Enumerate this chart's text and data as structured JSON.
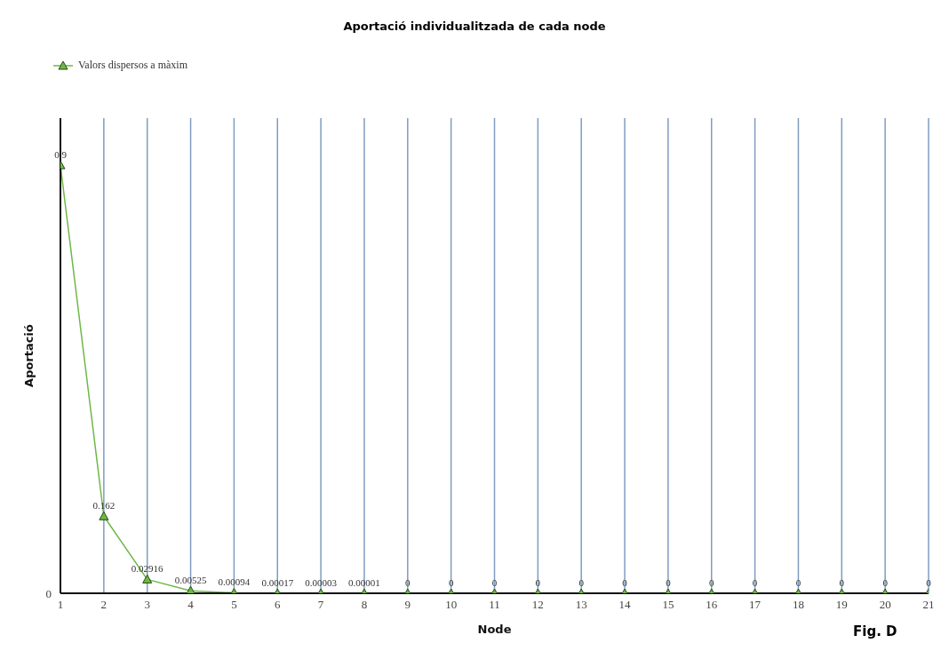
{
  "chart_data": {
    "type": "line",
    "title": "Aportació individualitzada de cada node",
    "xlabel": "Node",
    "ylabel": "Aportació",
    "x": [
      1,
      2,
      3,
      4,
      5,
      6,
      7,
      8,
      9,
      10,
      11,
      12,
      13,
      14,
      15,
      16,
      17,
      18,
      19,
      20,
      21
    ],
    "series": [
      {
        "name": "Valors dispersos a màxim",
        "color": "#6fb845",
        "values": [
          0.9,
          0.162,
          0.02916,
          0.00525,
          0.00094,
          0.00017,
          3e-05,
          1e-05,
          0,
          0,
          0,
          0,
          0,
          0,
          0,
          0,
          0,
          0,
          0,
          0,
          0
        ],
        "value_labels": [
          "0.9",
          "0.162",
          "0.02916",
          "0.00525",
          "0.00094",
          "0.00017",
          "0.00003",
          "0.00001",
          "0",
          "0",
          "0",
          "0",
          "0",
          "0",
          "0",
          "0",
          "0",
          "0",
          "0",
          "0",
          "0"
        ]
      }
    ],
    "xlim": [
      1,
      21
    ],
    "xticks": [
      1,
      2,
      3,
      4,
      5,
      6,
      7,
      8,
      9,
      10,
      11,
      12,
      13,
      14,
      15,
      16,
      17,
      18,
      19,
      20,
      21
    ],
    "grid": "x",
    "legend": "top left",
    "marker": "triangle",
    "line_style": "solid",
    "annotations": [
      "0",
      "Fig. D"
    ]
  }
}
